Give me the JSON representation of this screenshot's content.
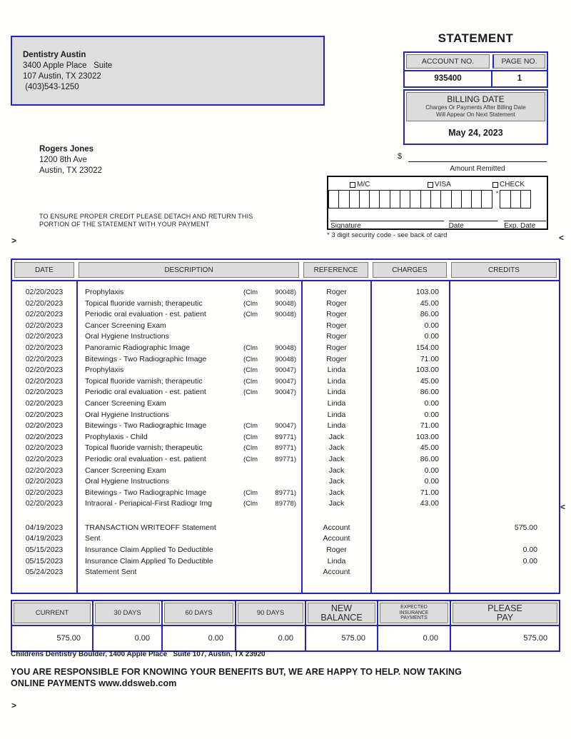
{
  "statement_title": "STATEMENT",
  "provider": {
    "name": "Dentistry Austin",
    "address_line1": "3400 Apple Place   Suite",
    "address_line2": "107 Austin, TX 23022",
    "phone": " (403)543-1250"
  },
  "account_box": {
    "account_label": "ACCOUNT NO.",
    "page_label": "PAGE NO.",
    "account_value": "935400",
    "page_value": "1"
  },
  "billing": {
    "label": "BILLING DATE",
    "note_line1": "Charges Or Payments After Billing Date",
    "note_line2": "Will Appear On Next Statement",
    "date": "May 24, 2023"
  },
  "recipient": {
    "name": "Rogers Jones",
    "address_line1": "1200 8th Ave",
    "address_line2": "Austin, TX 23022"
  },
  "detach_notice_line1": "TO ENSURE PROPER CREDIT PLEASE DETACH AND RETURN THIS",
  "detach_notice_line2": "PORTION OF THE STATEMENT WITH YOUR PAYMENT",
  "payment": {
    "currency_symbol": "$",
    "amount_remitted_label": "Amount Remitted",
    "methods": [
      "M/C",
      "VISA",
      "CHECK"
    ],
    "card_digit_boxes": 16,
    "security_boxes": 3,
    "security_star": "*",
    "signature_label": "Signature",
    "date_label": "Date",
    "exp_date_label": "Exp. Date",
    "security_note": "* 3 digit security code - see back of card"
  },
  "marks": {
    "top_left": ">",
    "top_right": "<",
    "mid_right": "<",
    "bottom_left": ">"
  },
  "transactions": {
    "headers": [
      "DATE",
      "DESCRIPTION",
      "REFERENCE",
      "CHARGES",
      "CREDITS"
    ],
    "rows": [
      {
        "date": "02/20/2023",
        "description": "Prophylaxis",
        "claim_prefix": "(Clm",
        "claim_number": "90048)",
        "reference": "Roger",
        "charges": "103.00",
        "credits": ""
      },
      {
        "date": "02/20/2023",
        "description": "Topical fluoride varnish; therapeutic",
        "claim_prefix": "(Clm",
        "claim_number": "90048)",
        "reference": "Roger",
        "charges": "45.00",
        "credits": ""
      },
      {
        "date": "02/20/2023",
        "description": "Periodic oral evaluation - est. patient",
        "claim_prefix": "(Clm",
        "claim_number": "90048)",
        "reference": "Roger",
        "charges": "86.00",
        "credits": ""
      },
      {
        "date": "02/20/2023",
        "description": "Cancer Screening Exam",
        "claim_prefix": "",
        "claim_number": "",
        "reference": "Roger",
        "charges": "0.00",
        "credits": ""
      },
      {
        "date": "02/20/2023",
        "description": "Oral Hygiene Instructions",
        "claim_prefix": "",
        "claim_number": "",
        "reference": "Roger",
        "charges": "0.00",
        "credits": ""
      },
      {
        "date": "02/20/2023",
        "description": "Panoramic Radiographic Image",
        "claim_prefix": "(Clm",
        "claim_number": "90048)",
        "reference": "Roger",
        "charges": "154.00",
        "credits": ""
      },
      {
        "date": "02/20/2023",
        "description": "Bitewings - Two Radiographic Image",
        "claim_prefix": "(Clm",
        "claim_number": "90048)",
        "reference": "Roger",
        "charges": "71.00",
        "credits": ""
      },
      {
        "date": "02/20/2023",
        "description": "Prophylaxis",
        "claim_prefix": "(Clm",
        "claim_number": "90047)",
        "reference": "Linda",
        "charges": "103.00",
        "credits": ""
      },
      {
        "date": "02/20/2023",
        "description": "Topical fluoride varnish; therapeutic",
        "claim_prefix": "(Clm",
        "claim_number": "90047)",
        "reference": "Linda",
        "charges": "45.00",
        "credits": ""
      },
      {
        "date": "02/20/2023",
        "description": "Periodic oral evaluation - est. patient",
        "claim_prefix": "(Clm",
        "claim_number": "90047)",
        "reference": "Linda",
        "charges": "86.00",
        "credits": ""
      },
      {
        "date": "02/20/2023",
        "description": "Cancer Screening Exam",
        "claim_prefix": "",
        "claim_number": "",
        "reference": "Linda",
        "charges": "0.00",
        "credits": ""
      },
      {
        "date": "02/20/2023",
        "description": "Oral Hygiene Instructions",
        "claim_prefix": "",
        "claim_number": "",
        "reference": "Linda",
        "charges": "0.00",
        "credits": ""
      },
      {
        "date": "02/20/2023",
        "description": "Bitewings - Two Radiographic Image",
        "claim_prefix": "(Clm",
        "claim_number": "90047)",
        "reference": "Linda",
        "charges": "71.00",
        "credits": ""
      },
      {
        "date": "02/20/2023",
        "description": "Prophylaxis - Child",
        "claim_prefix": "(Clm",
        "claim_number": "89771)",
        "reference": "Jack",
        "charges": "103.00",
        "credits": ""
      },
      {
        "date": "02/20/2023",
        "description": "Topical fluoride varnish; therapeutic",
        "claim_prefix": "(Clm",
        "claim_number": "89771)",
        "reference": "Jack",
        "charges": "45.00",
        "credits": ""
      },
      {
        "date": "02/20/2023",
        "description": "Periodic oral evaluation - est. patient",
        "claim_prefix": "(Clm",
        "claim_number": "89771)",
        "reference": "Jack",
        "charges": "86.00",
        "credits": ""
      },
      {
        "date": "02/20/2023",
        "description": "Cancer Screening Exam",
        "claim_prefix": "",
        "claim_number": "",
        "reference": "Jack",
        "charges": "0.00",
        "credits": ""
      },
      {
        "date": "02/20/2023",
        "description": "Oral Hygiene Instructions",
        "claim_prefix": "",
        "claim_number": "",
        "reference": "Jack",
        "charges": "0.00",
        "credits": ""
      },
      {
        "date": "02/20/2023",
        "description": "Bitewings - Two Radiographic Image",
        "claim_prefix": "(Clm",
        "claim_number": "89771)",
        "reference": "Jack",
        "charges": "71.00",
        "credits": ""
      },
      {
        "date": "02/20/2023",
        "description": "Intraoral - Periapical-First Radiogr Img",
        "claim_prefix": "(Clm",
        "claim_number": "89778)",
        "reference": "Jack",
        "charges": "43.00",
        "credits": ""
      }
    ],
    "adjustment_rows": [
      {
        "date": "04/19/2023",
        "description": "TRANSACTION WRITEOFF Statement",
        "claim_prefix": "",
        "claim_number": "",
        "reference": "Account",
        "charges": "",
        "credits": "575.00"
      },
      {
        "date": "04/19/2023",
        "description": "Sent",
        "claim_prefix": "",
        "claim_number": "",
        "reference": "Account",
        "charges": "",
        "credits": ""
      },
      {
        "date": "05/15/2023",
        "description": "Insurance Claim Applied To Deductible",
        "claim_prefix": "",
        "claim_number": "",
        "reference": "Roger",
        "charges": "",
        "credits": "0.00"
      },
      {
        "date": "05/15/2023",
        "description": "Insurance Claim Applied To Deductible",
        "claim_prefix": "",
        "claim_number": "",
        "reference": "Linda",
        "charges": "",
        "credits": "0.00"
      },
      {
        "date": "05/24/2023",
        "description": "Statement Sent",
        "claim_prefix": "",
        "claim_number": "",
        "reference": "Account",
        "charges": "",
        "credits": ""
      }
    ]
  },
  "summary": {
    "columns": [
      {
        "lines": [
          "CURRENT"
        ],
        "value": "575.00"
      },
      {
        "lines": [
          "30 DAYS"
        ],
        "value": "0.00"
      },
      {
        "lines": [
          "60 DAYS"
        ],
        "value": "0.00"
      },
      {
        "lines": [
          "90 DAYS"
        ],
        "value": "0.00"
      },
      {
        "lines": [
          "NEW",
          "BALANCE"
        ],
        "value": "575.00"
      },
      {
        "lines": [
          "EXPECTED",
          "INSURANCE",
          "PAYMENTS"
        ],
        "value": "0.00"
      },
      {
        "lines": [
          "PLEASE",
          "PAY"
        ],
        "value": "575.00"
      }
    ]
  },
  "footer": {
    "secondary_office": "Childrens Dentistry Boulder, 1400 Apple Place   Suite 107, Austin, TX 23920",
    "notice_line1": "YOU ARE RESPONSIBLE FOR KNOWING YOUR BENEFITS BUT, WE ARE HAPPY TO HELP. NOW TAKING",
    "notice_line2": "ONLINE PAYMENTS www.ddsweb.com"
  },
  "colors": {
    "accent_blue": "#2323c8",
    "header_gray": "#dcdcdc"
  }
}
